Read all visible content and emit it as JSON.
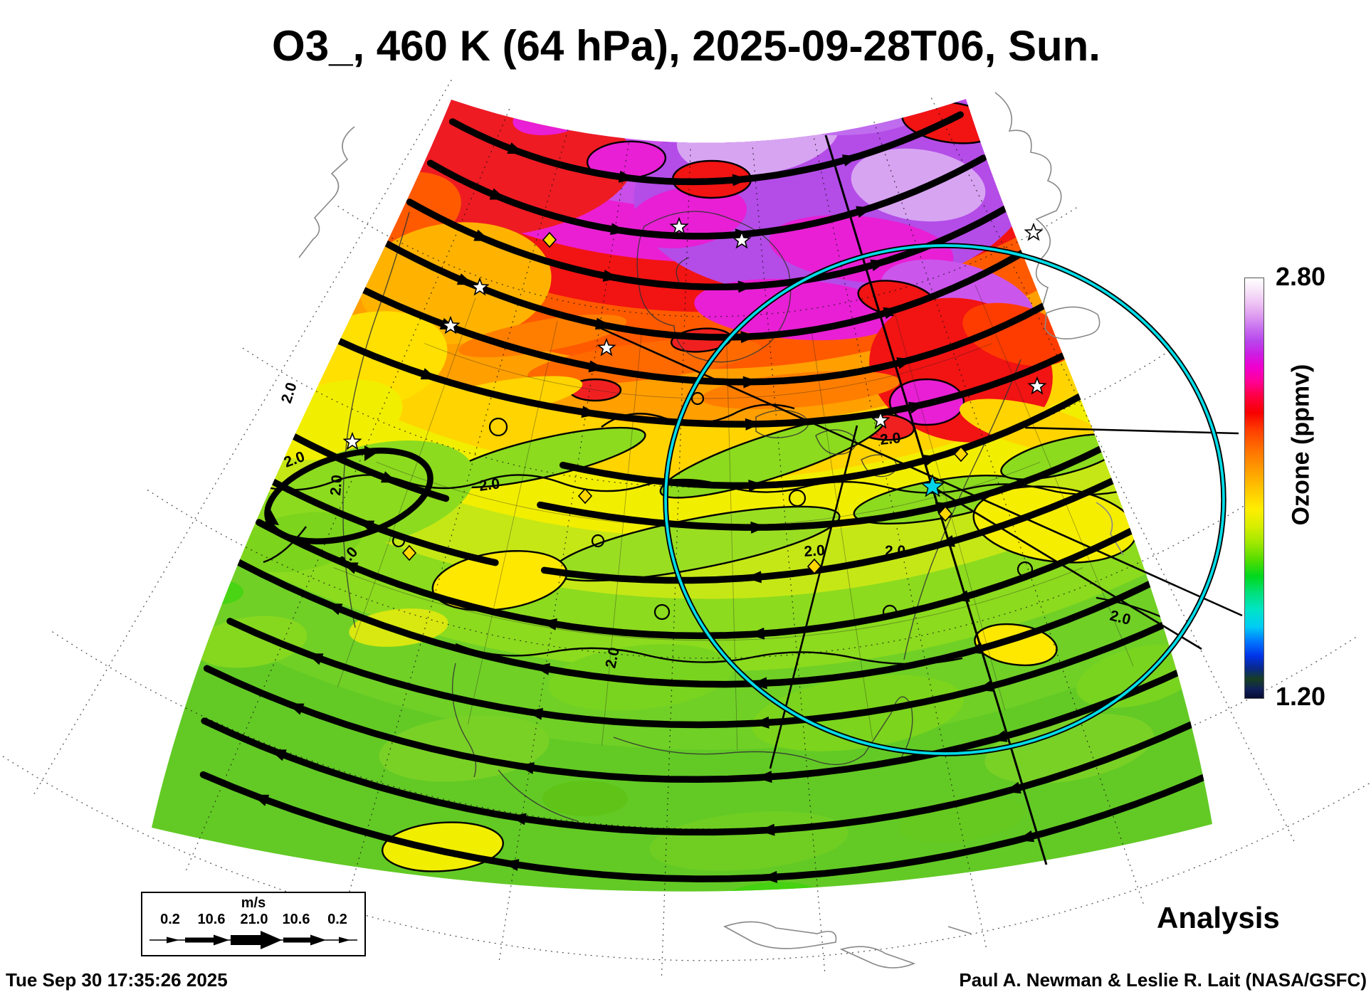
{
  "title": {
    "text": "O3_, 460 K (64 hPa), 2025-09-28T06, Sun."
  },
  "colorbar": {
    "axis_label": "Ozone (ppmv)",
    "max_label": "2.80",
    "min_label": "1.20",
    "max_value": 2.8,
    "min_value": 1.2,
    "units": "ppmv"
  },
  "wind_legend": {
    "units_label": "m/s",
    "tick_labels": [
      "0.2",
      "10.6",
      "21.0",
      "10.6",
      "0.2"
    ],
    "speeds_ms": [
      0.2,
      10.6,
      21.0,
      10.6,
      0.2
    ]
  },
  "map": {
    "contour_label": "2.0",
    "contour_level_ppmv": 2.0,
    "theta_level_k": 460,
    "pressure_hpa": 64,
    "valid_time": "2025-09-28T06",
    "valid_day": "Sun.",
    "colors": {
      "observation_circle": "#00dde8",
      "cyan_star": "#00d4e8",
      "yellow_diamond": "#ffd700",
      "streamline": "#000000"
    }
  },
  "annotations": {
    "analysis_label": "Analysis"
  },
  "footer": {
    "timestamp": "Tue Sep 30 17:35:26 2025",
    "credit": "Paul A. Newman & Leslie R. Lait (NASA/GSFC)"
  }
}
